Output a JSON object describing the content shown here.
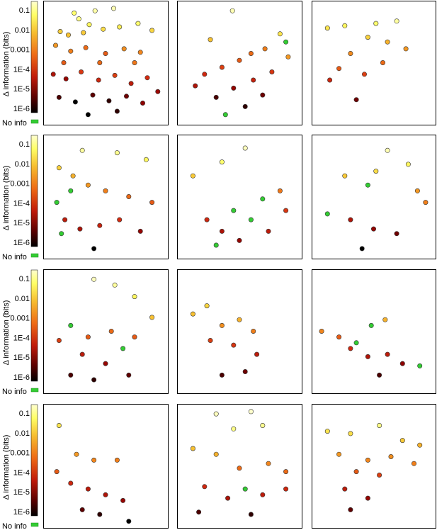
{
  "chart_data": {
    "type": "scatter",
    "layout": "4x3 grid of panels",
    "ylabel": "Δ information (bits)",
    "yscale": "log",
    "colorbar": {
      "tick_labels": [
        "0.1",
        "0.01",
        "0.001",
        "1E-4",
        "1E-5",
        "1E-6"
      ],
      "tick_values": [
        0.1,
        0.01,
        0.001,
        0.0001,
        1e-05,
        1e-06
      ],
      "range": [
        1e-06,
        0.2
      ],
      "no_info_label": "No info",
      "no_info_color": "#33cc33",
      "colormap": [
        "#000000",
        "#8b0000",
        "#d42a10",
        "#f07a18",
        "#f7c533",
        "#ffff66",
        "#ffffcc"
      ]
    },
    "panels": [
      {
        "row": 0,
        "col": 0,
        "points": [
          [
            0.23,
            0.93,
            0.03
          ],
          [
            0.41,
            0.95,
            0.1
          ],
          [
            0.57,
            0.97,
            0.12
          ],
          [
            0.27,
            0.88,
            0.05
          ],
          [
            0.36,
            0.83,
            0.02
          ],
          [
            0.11,
            0.77,
            0.005
          ],
          [
            0.18,
            0.74,
            0.003
          ],
          [
            0.31,
            0.76,
            0.004
          ],
          [
            0.48,
            0.79,
            0.008
          ],
          [
            0.62,
            0.81,
            0.015
          ],
          [
            0.78,
            0.84,
            0.03
          ],
          [
            0.9,
            0.78,
            0.006
          ],
          [
            0.07,
            0.65,
            0.001
          ],
          [
            0.2,
            0.6,
            0.0005
          ],
          [
            0.33,
            0.63,
            0.0003
          ],
          [
            0.5,
            0.58,
            0.0002
          ],
          [
            0.66,
            0.62,
            0.0008
          ],
          [
            0.8,
            0.59,
            0.0006
          ],
          [
            0.05,
            0.4,
            2e-05
          ],
          [
            0.16,
            0.36,
            1e-05
          ],
          [
            0.29,
            0.42,
            8e-05
          ],
          [
            0.44,
            0.35,
            5e-05
          ],
          [
            0.58,
            0.39,
            0.0001
          ],
          [
            0.72,
            0.32,
            3e-05
          ],
          [
            0.86,
            0.37,
            6e-05
          ],
          [
            0.1,
            0.2,
            3e-06
          ],
          [
            0.24,
            0.16,
            1e-06
          ],
          [
            0.39,
            0.22,
            4e-06
          ],
          [
            0.53,
            0.17,
            2e-06
          ],
          [
            0.68,
            0.21,
            5e-06
          ],
          [
            0.82,
            0.15,
            8e-06
          ],
          [
            0.95,
            0.25,
            1.2e-05
          ],
          [
            0.14,
            0.5,
            0.0002
          ],
          [
            0.45,
            0.5,
            0.0003
          ],
          [
            0.75,
            0.5,
            0.0004
          ],
          [
            0.35,
            0.05,
            1e-06
          ],
          [
            0.6,
            0.08,
            2e-06
          ]
        ]
      },
      {
        "row": 0,
        "col": 1,
        "points": [
          [
            0.44,
            0.95,
            0.12
          ],
          [
            0.85,
            0.75,
            0.01
          ],
          [
            0.9,
            0.68,
            "none"
          ],
          [
            0.72,
            0.62,
            0.0005
          ],
          [
            0.6,
            0.58,
            0.0003
          ],
          [
            0.5,
            0.52,
            0.0002
          ],
          [
            0.35,
            0.46,
            0.0001
          ],
          [
            0.2,
            0.4,
            5e-05
          ],
          [
            0.12,
            0.3,
            2e-05
          ],
          [
            0.45,
            0.28,
            1e-05
          ],
          [
            0.62,
            0.35,
            4e-05
          ],
          [
            0.78,
            0.42,
            8e-05
          ],
          [
            0.3,
            0.2,
            3e-06
          ],
          [
            0.55,
            0.12,
            2e-06
          ],
          [
            0.38,
            0.05,
            "none"
          ],
          [
            0.7,
            0.22,
            5e-06
          ],
          [
            0.92,
            0.55,
            0.001
          ],
          [
            0.25,
            0.7,
            0.003
          ]
        ]
      },
      {
        "row": 0,
        "col": 2,
        "points": [
          [
            0.1,
            0.8,
            0.01
          ],
          [
            0.25,
            0.82,
            0.02
          ],
          [
            0.52,
            0.84,
            0.03
          ],
          [
            0.7,
            0.86,
            0.08
          ],
          [
            0.45,
            0.72,
            0.005
          ],
          [
            0.62,
            0.68,
            0.002
          ],
          [
            0.78,
            0.62,
            0.001
          ],
          [
            0.3,
            0.58,
            0.0007
          ],
          [
            0.2,
            0.45,
            0.0002
          ],
          [
            0.42,
            0.4,
            0.0001
          ],
          [
            0.58,
            0.5,
            0.0003
          ],
          [
            0.12,
            0.35,
            5e-05
          ],
          [
            0.35,
            0.18,
            5e-06
          ]
        ]
      },
      {
        "row": 1,
        "col": 0,
        "points": [
          [
            0.3,
            0.9,
            0.08
          ],
          [
            0.6,
            0.88,
            0.06
          ],
          [
            0.85,
            0.82,
            0.02
          ],
          [
            0.1,
            0.75,
            0.005
          ],
          [
            0.22,
            0.68,
            0.002
          ],
          [
            0.2,
            0.55,
            "none"
          ],
          [
            0.08,
            0.45,
            "none"
          ],
          [
            0.12,
            0.18,
            "none"
          ],
          [
            0.35,
            0.6,
            0.001
          ],
          [
            0.5,
            0.55,
            0.0005
          ],
          [
            0.7,
            0.5,
            0.0003
          ],
          [
            0.9,
            0.45,
            0.0002
          ],
          [
            0.15,
            0.3,
            3e-05
          ],
          [
            0.28,
            0.22,
            2e-05
          ],
          [
            0.45,
            0.25,
            4e-05
          ],
          [
            0.62,
            0.3,
            6e-05
          ],
          [
            0.8,
            0.2,
            1e-05
          ],
          [
            0.4,
            0.05,
            1e-06
          ]
        ]
      },
      {
        "row": 1,
        "col": 1,
        "points": [
          [
            0.55,
            0.92,
            0.15
          ],
          [
            0.35,
            0.8,
            0.03
          ],
          [
            0.1,
            0.68,
            0.004
          ],
          [
            0.85,
            0.55,
            0.0004
          ],
          [
            0.7,
            0.48,
            "none"
          ],
          [
            0.45,
            0.38,
            "none"
          ],
          [
            0.6,
            0.3,
            "none"
          ],
          [
            0.22,
            0.3,
            5e-05
          ],
          [
            0.35,
            0.2,
            2e-05
          ],
          [
            0.5,
            0.12,
            1e-05
          ],
          [
            0.75,
            0.2,
            3e-05
          ],
          [
            0.9,
            0.38,
            8e-05
          ],
          [
            0.3,
            0.08,
            "none"
          ]
        ]
      },
      {
        "row": 1,
        "col": 2,
        "points": [
          [
            0.62,
            0.9,
            0.12
          ],
          [
            0.8,
            0.78,
            0.02
          ],
          [
            0.52,
            0.72,
            0.008
          ],
          [
            0.25,
            0.68,
            0.004
          ],
          [
            0.45,
            0.6,
            "none"
          ],
          [
            0.88,
            0.55,
            0.001
          ],
          [
            0.95,
            0.45,
            0.0005
          ],
          [
            0.1,
            0.35,
            "none"
          ],
          [
            0.3,
            0.3,
            2e-05
          ],
          [
            0.5,
            0.22,
            1e-05
          ],
          [
            0.7,
            0.18,
            5e-06
          ],
          [
            0.4,
            0.05,
            1e-06
          ]
        ]
      },
      {
        "row": 2,
        "col": 0,
        "points": [
          [
            0.4,
            0.95,
            0.15
          ],
          [
            0.58,
            0.9,
            0.08
          ],
          [
            0.75,
            0.8,
            0.02
          ],
          [
            0.9,
            0.62,
            0.003
          ],
          [
            0.2,
            0.55,
            "none"
          ],
          [
            0.1,
            0.42,
            0.0001
          ],
          [
            0.35,
            0.45,
            0.0002
          ],
          [
            0.55,
            0.5,
            0.0003
          ],
          [
            0.75,
            0.45,
            0.0002
          ],
          [
            0.65,
            0.35,
            "none"
          ],
          [
            0.3,
            0.3,
            3e-05
          ],
          [
            0.5,
            0.22,
            1e-05
          ],
          [
            0.2,
            0.12,
            3e-06
          ],
          [
            0.4,
            0.08,
            2e-06
          ],
          [
            0.7,
            0.12,
            4e-06
          ]
        ]
      },
      {
        "row": 2,
        "col": 1,
        "points": [
          [
            0.1,
            0.65,
            0.003
          ],
          [
            0.22,
            0.72,
            0.006
          ],
          [
            0.35,
            0.55,
            0.0008
          ],
          [
            0.5,
            0.6,
            0.002
          ],
          [
            0.62,
            0.5,
            0.0005
          ],
          [
            0.25,
            0.42,
            0.0001
          ],
          [
            0.45,
            0.38,
            8e-05
          ],
          [
            0.65,
            0.3,
            3e-05
          ],
          [
            0.55,
            0.15,
            5e-06
          ],
          [
            0.35,
            0.12,
            3e-06
          ]
        ]
      },
      {
        "row": 2,
        "col": 2,
        "points": [
          [
            0.05,
            0.5,
            0.0006
          ],
          [
            0.48,
            0.55,
            "none"
          ],
          [
            0.6,
            0.6,
            0.002
          ],
          [
            0.2,
            0.45,
            0.0002
          ],
          [
            0.35,
            0.4,
            "none"
          ],
          [
            0.3,
            0.35,
            5e-05
          ],
          [
            0.45,
            0.28,
            2e-05
          ],
          [
            0.62,
            0.3,
            3e-05
          ],
          [
            0.75,
            0.22,
            8e-06
          ],
          [
            0.9,
            0.2,
            "none"
          ],
          [
            0.55,
            0.12,
            3e-06
          ]
        ]
      },
      {
        "row": 3,
        "col": 0,
        "points": [
          [
            0.1,
            0.85,
            0.01
          ],
          [
            0.25,
            0.6,
            0.001
          ],
          [
            0.4,
            0.55,
            0.0006
          ],
          [
            0.6,
            0.55,
            0.0005
          ],
          [
            0.08,
            0.45,
            0.0002
          ],
          [
            0.2,
            0.35,
            5e-05
          ],
          [
            0.35,
            0.3,
            3e-05
          ],
          [
            0.5,
            0.25,
            2e-05
          ],
          [
            0.65,
            0.2,
            1e-05
          ],
          [
            0.3,
            0.12,
            4e-06
          ],
          [
            0.45,
            0.08,
            2e-06
          ],
          [
            0.7,
            0.02,
            1e-06
          ]
        ]
      },
      {
        "row": 3,
        "col": 1,
        "points": [
          [
            0.3,
            0.95,
            0.15
          ],
          [
            0.6,
            0.97,
            0.2
          ],
          [
            0.45,
            0.82,
            0.05
          ],
          [
            0.7,
            0.85,
            0.06
          ],
          [
            0.1,
            0.65,
            0.003
          ],
          [
            0.3,
            0.6,
            0.002
          ],
          [
            0.5,
            0.48,
            0.0003
          ],
          [
            0.75,
            0.52,
            0.0006
          ],
          [
            0.9,
            0.45,
            0.0003
          ],
          [
            0.2,
            0.32,
            5e-05
          ],
          [
            0.55,
            0.3,
            "none"
          ],
          [
            0.4,
            0.22,
            2e-05
          ],
          [
            0.7,
            0.25,
            3e-05
          ],
          [
            0.9,
            0.3,
            5e-05
          ],
          [
            0.15,
            0.1,
            3e-06
          ],
          [
            0.6,
            0.08,
            2e-06
          ]
        ]
      },
      {
        "row": 3,
        "col": 2,
        "points": [
          [
            0.1,
            0.8,
            0.01
          ],
          [
            0.3,
            0.78,
            0.008
          ],
          [
            0.55,
            0.85,
            0.05
          ],
          [
            0.75,
            0.72,
            0.004
          ],
          [
            0.9,
            0.68,
            0.002
          ],
          [
            0.2,
            0.6,
            0.001
          ],
          [
            0.45,
            0.55,
            0.0006
          ],
          [
            0.65,
            0.58,
            0.0008
          ],
          [
            0.85,
            0.52,
            0.0005
          ],
          [
            0.35,
            0.45,
            0.0002
          ],
          [
            0.55,
            0.42,
            0.0001
          ],
          [
            0.25,
            0.3,
            3e-05
          ],
          [
            0.45,
            0.22,
            1e-05
          ],
          [
            0.3,
            0.12,
            4e-06
          ]
        ]
      }
    ]
  }
}
